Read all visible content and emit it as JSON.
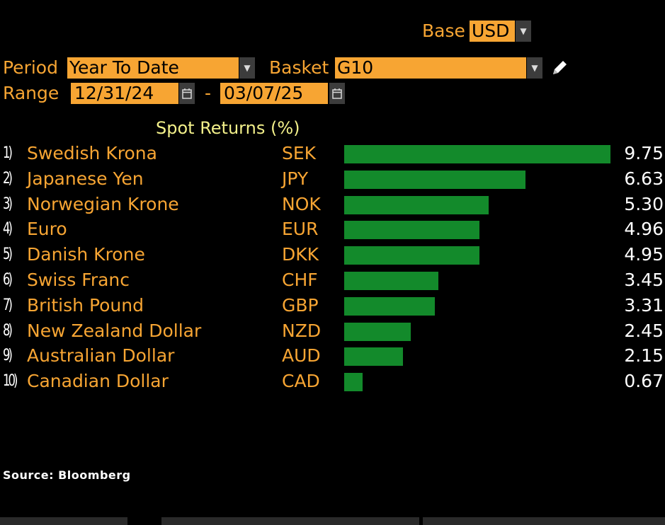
{
  "controls": {
    "base_label": "Base",
    "base_value": "USD",
    "period_label": "Period",
    "period_value": "Year To Date",
    "basket_label": "Basket",
    "basket_value": "G10",
    "range_label": "Range",
    "range_start": "12/31/24",
    "range_sep": "-",
    "range_end": "03/07/25"
  },
  "source": "Source: Bloomberg",
  "chart_data": {
    "type": "bar",
    "title": "Spot Returns (%)",
    "categories": [
      "Swedish Krona",
      "Japanese Yen",
      "Norwegian Krone",
      "Euro",
      "Danish Krone",
      "Swiss Franc",
      "British Pound",
      "New Zealand Dollar",
      "Australian Dollar",
      "Canadian Dollar"
    ],
    "rows": [
      {
        "num": "1)",
        "name": "Swedish Krona",
        "code": "SEK",
        "value": 9.75,
        "label": "9.75"
      },
      {
        "num": "2)",
        "name": "Japanese Yen",
        "code": "JPY",
        "value": 6.63,
        "label": "6.63"
      },
      {
        "num": "3)",
        "name": "Norwegian Krone",
        "code": "NOK",
        "value": 5.3,
        "label": "5.30"
      },
      {
        "num": "4)",
        "name": "Euro",
        "code": "EUR",
        "value": 4.96,
        "label": "4.96"
      },
      {
        "num": "5)",
        "name": "Danish Krone",
        "code": "DKK",
        "value": 4.95,
        "label": "4.95"
      },
      {
        "num": "6)",
        "name": "Swiss Franc",
        "code": "CHF",
        "value": 3.45,
        "label": "3.45"
      },
      {
        "num": "7)",
        "name": "British Pound",
        "code": "GBP",
        "value": 3.31,
        "label": "3.31"
      },
      {
        "num": "8)",
        "name": "New Zealand Dollar",
        "code": "NZD",
        "value": 2.45,
        "label": "2.45"
      },
      {
        "num": "9)",
        "name": "Australian Dollar",
        "code": "AUD",
        "value": 2.15,
        "label": "2.15"
      },
      {
        "num": "10)",
        "name": "Canadian Dollar",
        "code": "CAD",
        "value": 0.67,
        "label": "0.67"
      }
    ],
    "xlim": [
      0,
      9.75
    ],
    "bar_color": "#138a2b"
  }
}
